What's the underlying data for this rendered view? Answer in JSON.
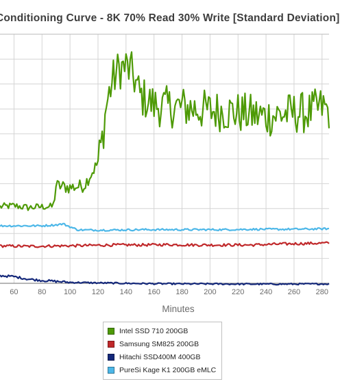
{
  "chart_data": {
    "type": "line",
    "title": "Conditioning Curve - 8K 70% Read 30% Write [Standard Deviation]",
    "xlabel": "Minutes",
    "ylabel": "",
    "xlim": [
      50,
      285
    ],
    "ylim": [
      0,
      13
    ],
    "x_ticks": [
      "60",
      "80",
      "100",
      "120",
      "140",
      "160",
      "180",
      "200",
      "220",
      "240",
      "260",
      "280"
    ],
    "grid": true,
    "legend_position": "bottom-center",
    "series": [
      {
        "name": "Intel SSD 710 200GB",
        "color": "#4e9a06",
        "points": [
          [
            50,
            4.0
          ],
          [
            60,
            4.05
          ],
          [
            70,
            3.95
          ],
          [
            80,
            4.0
          ],
          [
            88,
            4.0
          ],
          [
            90,
            5.1
          ],
          [
            100,
            5.0
          ],
          [
            110,
            5.1
          ],
          [
            115,
            5.7
          ],
          [
            120,
            6.3
          ],
          [
            123,
            7.5
          ],
          [
            126,
            9.3
          ],
          [
            130,
            10.5
          ],
          [
            135,
            11.2
          ],
          [
            140,
            11.3
          ],
          [
            145,
            10.9
          ],
          [
            150,
            9.8
          ],
          [
            160,
            9.3
          ],
          [
            170,
            9.2
          ],
          [
            180,
            9.2
          ],
          [
            190,
            9.1
          ],
          [
            200,
            9.0
          ],
          [
            210,
            9.0
          ],
          [
            220,
            8.9
          ],
          [
            230,
            8.8
          ],
          [
            240,
            8.7
          ],
          [
            250,
            8.8
          ],
          [
            260,
            8.9
          ],
          [
            270,
            8.9
          ],
          [
            280,
            9.2
          ],
          [
            285,
            9.0
          ]
        ]
      },
      {
        "name": "Samsung SM825 200GB",
        "color": "#c0282a",
        "points": [
          [
            50,
            1.95
          ],
          [
            70,
            1.93
          ],
          [
            90,
            1.95
          ],
          [
            110,
            1.97
          ],
          [
            130,
            2.0
          ],
          [
            150,
            2.0
          ],
          [
            170,
            2.02
          ],
          [
            190,
            2.0
          ],
          [
            210,
            2.0
          ],
          [
            230,
            2.0
          ],
          [
            250,
            2.05
          ],
          [
            270,
            2.08
          ],
          [
            285,
            2.1
          ]
        ]
      },
      {
        "name": "Hitachi SSD400M 400GB",
        "color": "#14287a",
        "points": [
          [
            50,
            0.4
          ],
          [
            60,
            0.35
          ],
          [
            70,
            0.22
          ],
          [
            80,
            0.15
          ],
          [
            90,
            0.1
          ],
          [
            100,
            0.05
          ],
          [
            120,
            0.02
          ],
          [
            140,
            0.0
          ],
          [
            160,
            -0.02
          ],
          [
            180,
            -0.03
          ],
          [
            200,
            -0.03
          ],
          [
            220,
            -0.04
          ],
          [
            240,
            -0.04
          ],
          [
            260,
            -0.04
          ],
          [
            285,
            -0.03
          ]
        ]
      },
      {
        "name": "PureSi Kage K1 200GB eMLC",
        "color": "#4cb7e8",
        "points": [
          [
            50,
            3.0
          ],
          [
            60,
            3.0
          ],
          [
            70,
            3.0
          ],
          [
            80,
            3.0
          ],
          [
            90,
            3.05
          ],
          [
            95,
            3.1
          ],
          [
            100,
            2.95
          ],
          [
            105,
            2.8
          ],
          [
            110,
            2.78
          ],
          [
            130,
            2.78
          ],
          [
            150,
            2.8
          ],
          [
            170,
            2.8
          ],
          [
            190,
            2.8
          ],
          [
            210,
            2.8
          ],
          [
            230,
            2.82
          ],
          [
            250,
            2.82
          ],
          [
            270,
            2.83
          ],
          [
            285,
            2.85
          ]
        ]
      }
    ]
  }
}
